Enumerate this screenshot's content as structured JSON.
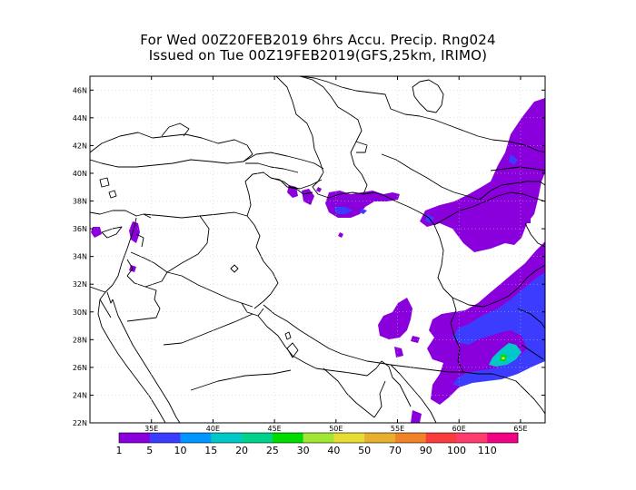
{
  "title_line1": "For Wed 00Z20FEB2019 6hrs Accu. Precip. Rng024",
  "title_line2": "Issued on Tue 00Z19FEB2019(GFS,25km, IRIMO)",
  "map": {
    "lon_range": [
      30,
      67
    ],
    "lat_range": [
      22,
      47
    ],
    "lat_ticks": [
      "22N",
      "24N",
      "26N",
      "28N",
      "30N",
      "32N",
      "34N",
      "36N",
      "38N",
      "40N",
      "42N",
      "44N",
      "46N"
    ],
    "lon_ticks": [
      "35E",
      "40E",
      "45E",
      "50E",
      "55E",
      "60E",
      "65E"
    ],
    "precip_palette": [
      "#8800dd",
      "#0055ff"
    ]
  },
  "colorbar": {
    "colors": [
      "#8a00dc",
      "#3c3cff",
      "#0096ff",
      "#00c8c8",
      "#00d28c",
      "#00dc00",
      "#a0e632",
      "#e6dc32",
      "#e6af2d",
      "#f08228",
      "#fa3c3c",
      "#ff3c6e",
      "#f00082"
    ],
    "labels": [
      "1",
      "5",
      "10",
      "15",
      "20",
      "25",
      "30",
      "40",
      "50",
      "70",
      "90",
      "100",
      "110"
    ]
  }
}
